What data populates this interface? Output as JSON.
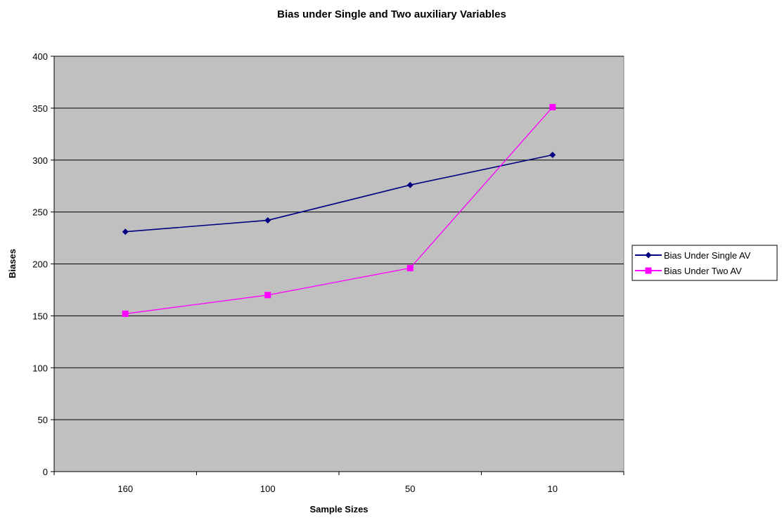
{
  "chart_data": {
    "type": "line",
    "title": "Bias under Single and Two auxiliary Variables",
    "xlabel": "Sample Sizes",
    "ylabel": "Biases",
    "categories": [
      "160",
      "100",
      "50",
      "10"
    ],
    "ylim": [
      0,
      400
    ],
    "yticks": [
      "0",
      "50",
      "100",
      "150",
      "200",
      "250",
      "300",
      "350",
      "400"
    ],
    "grid": "horizontal",
    "legend_position": "right",
    "plot_background": "#c0c0c0",
    "series": [
      {
        "name": "Bias Under Single AV",
        "values": [
          231,
          242,
          276,
          305
        ],
        "color": "#000080",
        "marker": "diamond"
      },
      {
        "name": "Bias Under Two AV",
        "values": [
          152,
          170,
          196,
          351
        ],
        "color": "#ff00ff",
        "marker": "square"
      }
    ]
  }
}
